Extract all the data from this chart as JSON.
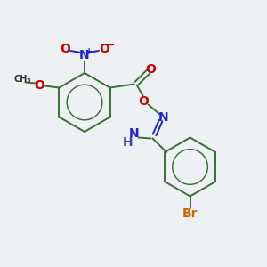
{
  "background_color": "#eef1f3",
  "bond_color": "#3a6e3a",
  "atom_colors": {
    "O": "#cc0000",
    "N": "#2222cc",
    "Br": "#cc6600",
    "C": "#000000",
    "H": "#4444aa"
  },
  "figsize": [
    3.0,
    3.0
  ],
  "dpi": 100
}
